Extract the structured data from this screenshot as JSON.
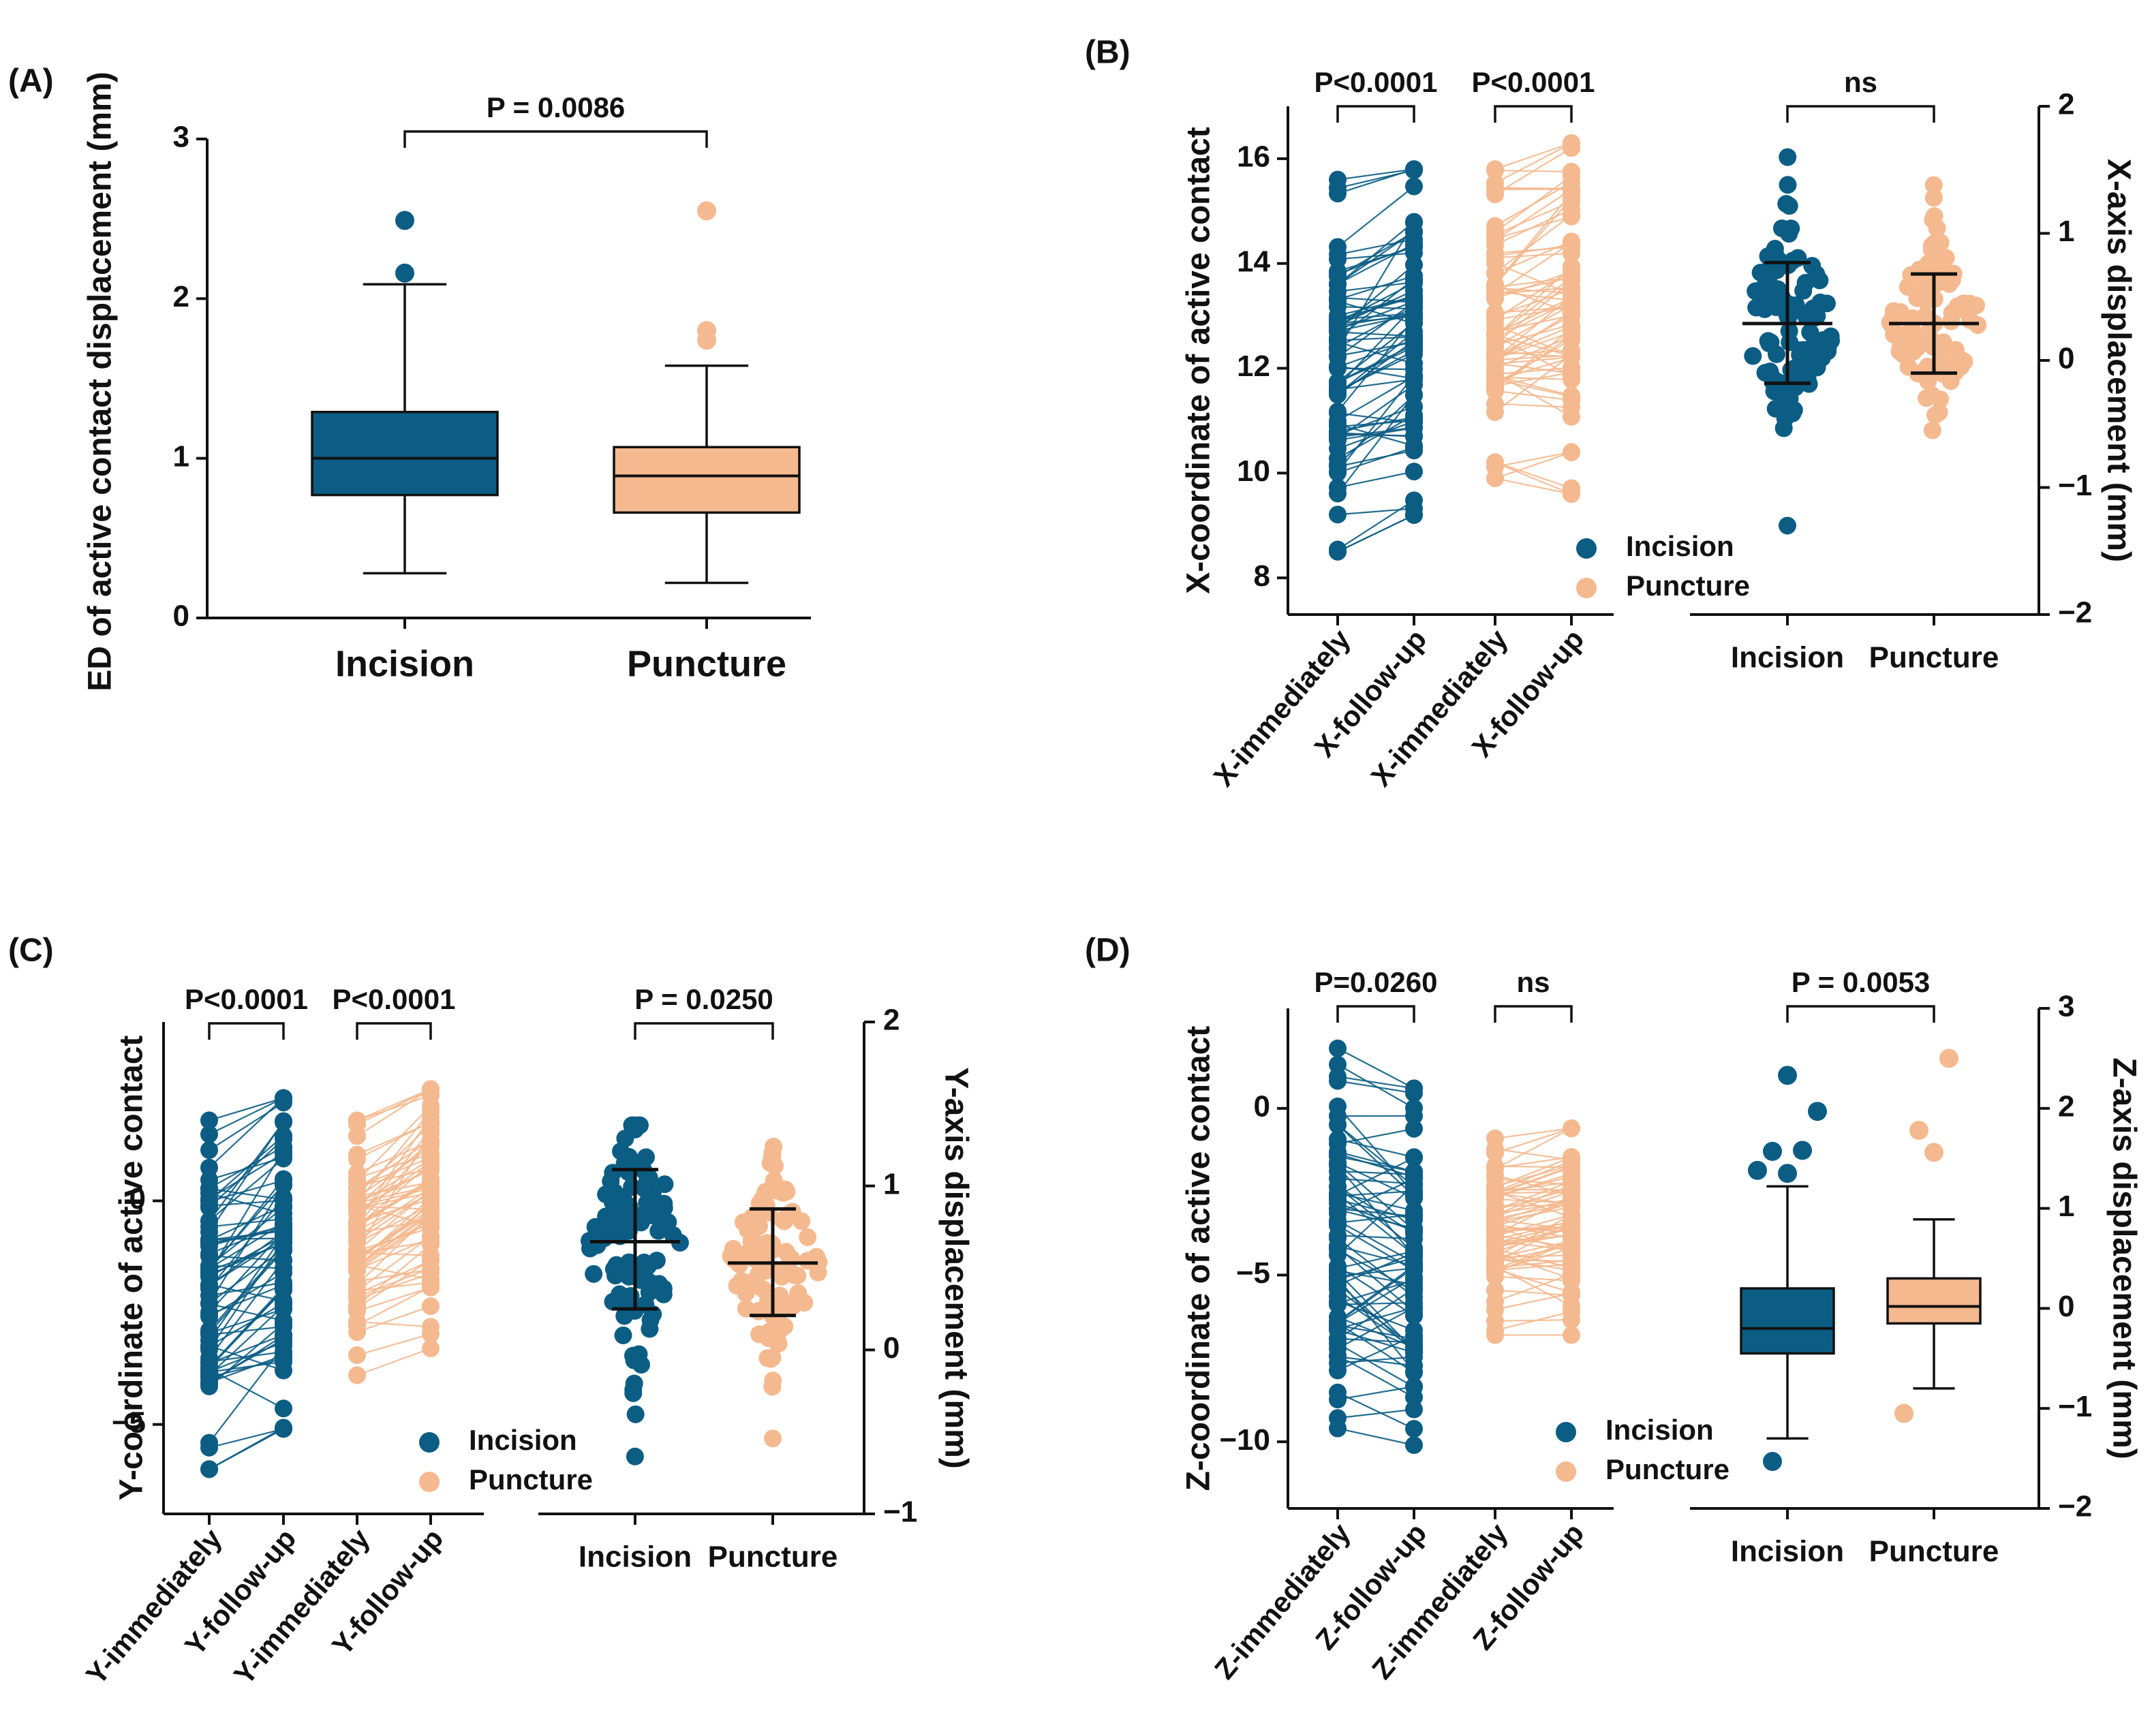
{
  "colors": {
    "incision": "#0b5d84",
    "puncture": "#f4b98f"
  },
  "chart_data": [
    {
      "type": "boxplot",
      "panel_label": "(A)",
      "ylabel": "ED of active contact displacement (mm)",
      "ylim": [
        0,
        3
      ],
      "yticks": [
        0,
        1,
        2,
        3
      ],
      "categories": [
        "Incision",
        "Puncture"
      ],
      "boxes": [
        {
          "name": "Incision",
          "whisker_low": 0.28,
          "q1": 0.77,
          "median": 1.0,
          "q3": 1.29,
          "whisker_high": 2.09,
          "outliers": [
            2.16,
            2.49
          ]
        },
        {
          "name": "Puncture",
          "whisker_low": 0.22,
          "q1": 0.66,
          "median": 0.89,
          "q3": 1.07,
          "whisker_high": 1.58,
          "outliers": [
            1.74,
            1.8,
            2.55
          ]
        }
      ],
      "significance": [
        {
          "between": [
            "Incision",
            "Puncture"
          ],
          "label": "P = 0.0086"
        }
      ]
    },
    {
      "type": "paired_scatter_and_estimation",
      "panel_label": "(B)",
      "ylabel": "X-coordinate of active contact",
      "ylim": [
        7.3,
        17
      ],
      "yticks": [
        8,
        10,
        12,
        14,
        16
      ],
      "paired_categories": [
        "X-immediately",
        "X-follow-up",
        "X-immediately",
        "X-follow-up"
      ],
      "paired_ranges": [
        {
          "group": "Incision",
          "before": [
            8.5,
            15.6
          ],
          "after": [
            9.2,
            15.8
          ]
        },
        {
          "group": "Puncture",
          "before": [
            9.9,
            15.8
          ],
          "after": [
            9.6,
            16.3
          ]
        }
      ],
      "ylabel_right": "X-axis displacement (mm)",
      "ylim_right": [
        -2.0,
        2.0
      ],
      "yticks_right": [
        -2,
        -1,
        0,
        1,
        2
      ],
      "right_categories": [
        "Incision",
        "Puncture"
      ],
      "right_summary": [
        {
          "name": "Incision",
          "mean": 0.29,
          "sd_low": -0.18,
          "sd_high": 0.77,
          "min": -1.3,
          "max": 1.6
        },
        {
          "name": "Puncture",
          "mean": 0.29,
          "sd_low": -0.1,
          "sd_high": 0.68,
          "min": -0.55,
          "max": 1.38
        }
      ],
      "significance": [
        {
          "pair": 0,
          "label": "P<0.0001"
        },
        {
          "pair": 1,
          "label": "P<0.0001"
        },
        {
          "right": true,
          "label": "ns"
        }
      ],
      "legend": [
        "Incision",
        "Puncture"
      ]
    },
    {
      "type": "paired_scatter_and_estimation",
      "panel_label": "(C)",
      "ylabel": "Y-coordinate of active contact",
      "ylim": [
        -7,
        4
      ],
      "yticks": [
        -5,
        0
      ],
      "paired_categories": [
        "Y-immediately",
        "Y-follow-up",
        "Y-immediately",
        "Y-follow-up"
      ],
      "paired_ranges": [
        {
          "group": "Incision",
          "before": [
            -6.0,
            1.8
          ],
          "after": [
            -5.1,
            2.3
          ]
        },
        {
          "group": "Puncture",
          "before": [
            -3.9,
            1.8
          ],
          "after": [
            -3.3,
            2.5
          ]
        }
      ],
      "ylabel_right": "Y-axis displacement (mm)",
      "ylim_right": [
        -1.0,
        2.0
      ],
      "yticks_right": [
        -1,
        0,
        1,
        2
      ],
      "right_categories": [
        "Incision",
        "Puncture"
      ],
      "right_summary": [
        {
          "name": "Incision",
          "mean": 0.66,
          "sd_low": 0.25,
          "sd_high": 1.1,
          "min": -0.65,
          "max": 1.37
        },
        {
          "name": "Puncture",
          "mean": 0.53,
          "sd_low": 0.21,
          "sd_high": 0.86,
          "min": -0.54,
          "max": 1.24
        }
      ],
      "significance": [
        {
          "pair": 0,
          "label": "P<0.0001"
        },
        {
          "pair": 1,
          "label": "P<0.0001"
        },
        {
          "right": true,
          "label": "P = 0.0250"
        }
      ],
      "legend": [
        "Incision",
        "Puncture"
      ]
    },
    {
      "type": "paired_scatter_and_boxplot",
      "panel_label": "(D)",
      "ylabel": "Z-coordinate of active contact",
      "ylim": [
        -12,
        3
      ],
      "yticks": [
        -10,
        -5,
        0
      ],
      "paired_categories": [
        "Z-immediately",
        "Z-follow-up",
        "Z-immediately",
        "Z-follow-up"
      ],
      "paired_ranges": [
        {
          "group": "Incision",
          "before": [
            -9.6,
            1.8
          ],
          "after": [
            -10.1,
            0.6
          ]
        },
        {
          "group": "Puncture",
          "before": [
            -6.8,
            -0.9
          ],
          "after": [
            -6.8,
            -0.6
          ]
        }
      ],
      "ylabel_right": "Z-axis displacement (mm)",
      "ylim_right": [
        -2.0,
        3.0
      ],
      "yticks_right": [
        -2,
        -1,
        0,
        1,
        2,
        3
      ],
      "right_categories": [
        "Incision",
        "Puncture"
      ],
      "right_boxes": [
        {
          "name": "Incision",
          "whisker_low": -1.3,
          "q1": -0.45,
          "median": -0.2,
          "q3": 0.2,
          "whisker_high": 1.22,
          "outliers": [
            1.35,
            1.57,
            1.58,
            1.38,
            1.97,
            2.33,
            -1.53
          ]
        },
        {
          "name": "Puncture",
          "whisker_low": -0.8,
          "q1": -0.15,
          "median": 0.02,
          "q3": 0.3,
          "whisker_high": 0.89,
          "outliers": [
            1.56,
            1.78,
            2.5,
            -1.05
          ]
        }
      ],
      "significance": [
        {
          "pair": 0,
          "label": "P=0.0260"
        },
        {
          "pair": 1,
          "label": "ns"
        },
        {
          "right": true,
          "label": "P = 0.0053"
        }
      ],
      "legend": [
        "Incision",
        "Puncture"
      ]
    }
  ]
}
